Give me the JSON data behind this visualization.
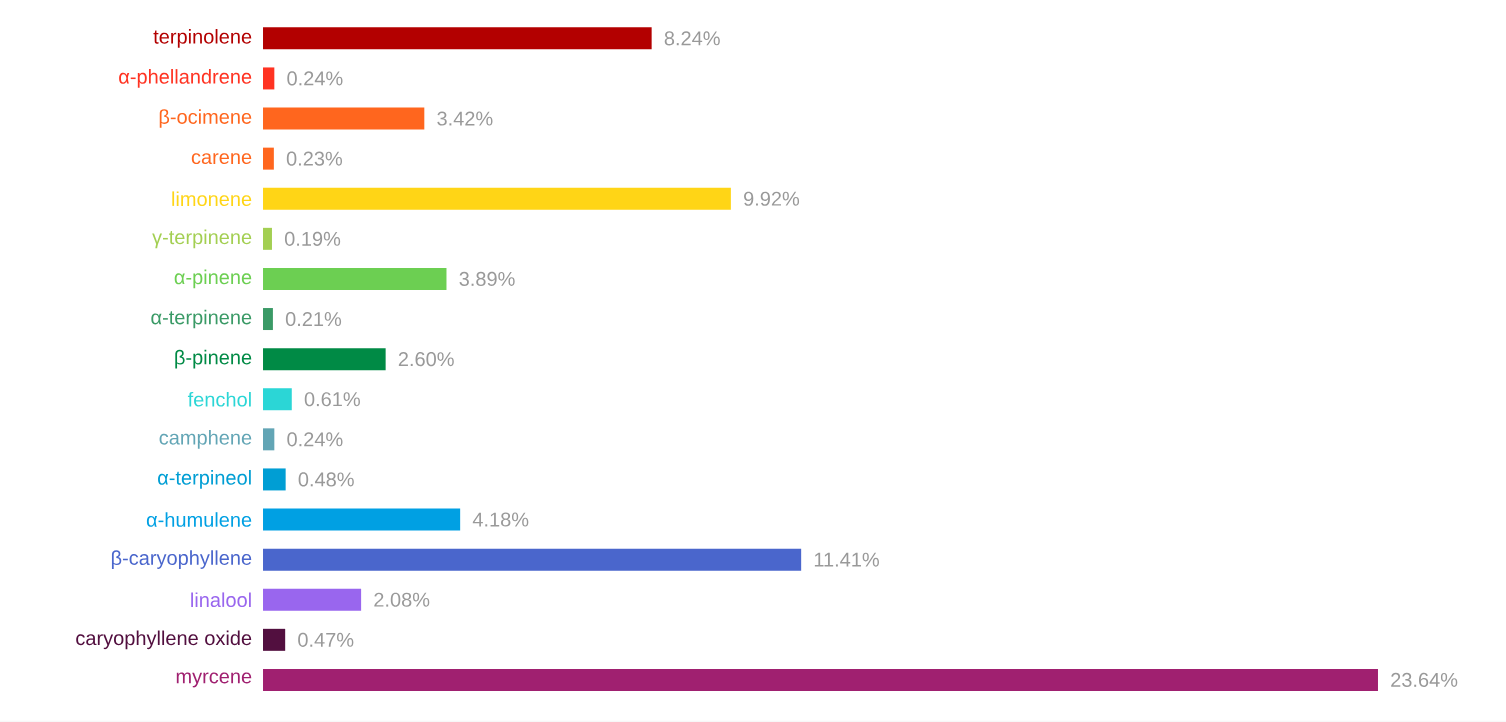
{
  "chart_data": {
    "type": "bar",
    "orientation": "horizontal",
    "categories": [
      "terpinolene",
      "α-phellandrene",
      "β-ocimene",
      "carene",
      "limonene",
      "γ-terpinene",
      "α-pinene",
      "α-terpinene",
      "β-pinene",
      "fenchol",
      "camphene",
      "α-terpineol",
      "α-humulene",
      "β-caryophyllene",
      "linalool",
      "caryophyllene oxide",
      "myrcene"
    ],
    "values": [
      8.24,
      0.24,
      3.42,
      0.23,
      9.92,
      0.19,
      3.89,
      0.21,
      2.6,
      0.61,
      0.24,
      0.48,
      4.18,
      11.41,
      2.08,
      0.47,
      23.64
    ],
    "value_labels": [
      "8.24%",
      "0.24%",
      "3.42%",
      "0.23%",
      "9.92%",
      "0.19%",
      "3.89%",
      "0.21%",
      "2.60%",
      "0.61%",
      "0.24%",
      "0.48%",
      "4.18%",
      "11.41%",
      "2.08%",
      "0.47%",
      "23.64%"
    ],
    "colors": [
      "#b30000",
      "#ff3322",
      "#ff661e",
      "#ff661e",
      "#ffd516",
      "#a3cf52",
      "#6ccf52",
      "#3a9a66",
      "#008a45",
      "#2bd6d6",
      "#62a5b5",
      "#009ed4",
      "#00a0e3",
      "#4a66cc",
      "#9966ee",
      "#520f3f",
      "#a02070"
    ]
  }
}
